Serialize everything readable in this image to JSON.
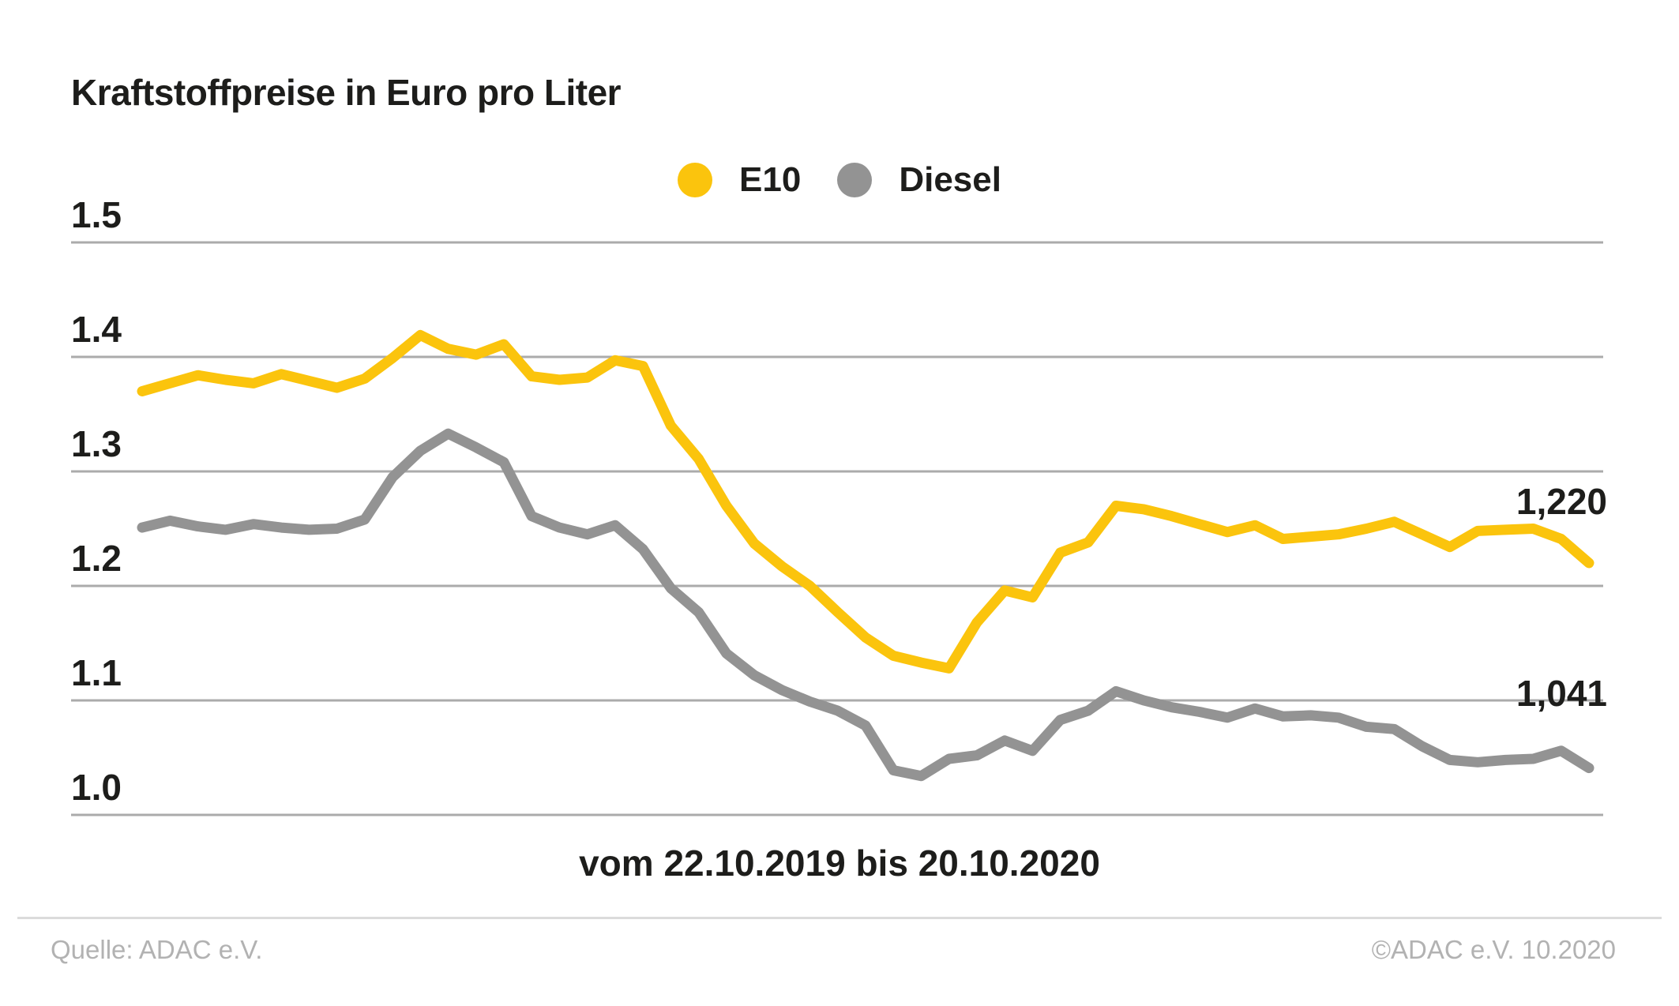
{
  "title": "Kraftstoffpreise in Euro pro Liter",
  "legend": [
    {
      "label": "E10",
      "color": "#FBC40D"
    },
    {
      "label": "Diesel",
      "color": "#939393"
    }
  ],
  "annotations": {
    "e10_end": "1,220",
    "diesel_end": "1,041"
  },
  "axis_caption": "vom 22.10.2019 bis 20.10.2020",
  "footer": {
    "source": "Quelle: ADAC e.V.",
    "copyright": "©ADAC e.V. 10.2020"
  },
  "colors": {
    "e10": "#FBC40D",
    "diesel": "#939393",
    "gridline": "#ABABAB",
    "text": "#1D1D1B",
    "footer_text": "#B2B2B2",
    "divider": "#DBDBDB"
  },
  "chart_data": {
    "type": "line",
    "title": "Kraftstoffpreise in Euro pro Liter",
    "ylabel": "Euro pro Liter",
    "x_start_label": "22.10.2019",
    "x_end_label": "20.10.2020",
    "interval": "weekly",
    "n_points": 53,
    "ylim": [
      0.97,
      1.53
    ],
    "yticks": [
      1.5,
      1.4,
      1.3,
      1.2,
      1.1,
      1.0
    ],
    "ytick_labels": [
      "1.5",
      "1.4",
      "1.3",
      "1.2",
      "1.1",
      "1.0"
    ],
    "grid": "horizontal",
    "legend_position": "top-center",
    "series": [
      {
        "name": "E10",
        "color": "#FBC40D",
        "end_value_label": "1,220",
        "values": [
          1.37,
          1.377,
          1.384,
          1.38,
          1.377,
          1.385,
          1.379,
          1.373,
          1.381,
          1.399,
          1.419,
          1.407,
          1.402,
          1.411,
          1.383,
          1.38,
          1.382,
          1.397,
          1.392,
          1.34,
          1.311,
          1.27,
          1.237,
          1.217,
          1.2,
          1.177,
          1.155,
          1.139,
          1.133,
          1.128,
          1.168,
          1.196,
          1.19,
          1.229,
          1.238,
          1.27,
          1.267,
          1.261,
          1.254,
          1.247,
          1.253,
          1.241,
          1.243,
          1.245,
          1.25,
          1.256,
          1.245,
          1.234,
          1.248,
          1.249,
          1.25,
          1.241,
          1.22
        ]
      },
      {
        "name": "Diesel",
        "color": "#939393",
        "end_value_label": "1,041",
        "values": [
          1.251,
          1.257,
          1.252,
          1.249,
          1.254,
          1.251,
          1.249,
          1.25,
          1.258,
          1.295,
          1.318,
          1.333,
          1.321,
          1.308,
          1.261,
          1.251,
          1.245,
          1.253,
          1.232,
          1.198,
          1.177,
          1.141,
          1.122,
          1.109,
          1.099,
          1.091,
          1.078,
          1.039,
          1.034,
          1.049,
          1.052,
          1.065,
          1.056,
          1.083,
          1.091,
          1.108,
          1.1,
          1.094,
          1.09,
          1.085,
          1.093,
          1.086,
          1.087,
          1.085,
          1.077,
          1.075,
          1.06,
          1.048,
          1.046,
          1.048,
          1.049,
          1.056,
          1.041
        ]
      }
    ]
  }
}
